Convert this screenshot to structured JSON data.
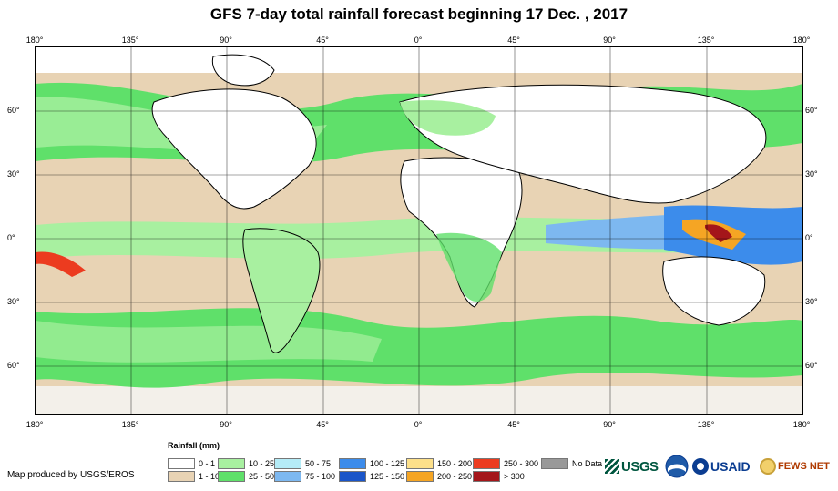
{
  "title": "GFS 7-day total rainfall forecast beginning 17 Dec. , 2017",
  "lon_ticks": [
    "180°",
    "135°",
    "90°",
    "45°",
    "0°",
    "45°",
    "90°",
    "135°",
    "180°"
  ],
  "lat_ticks": [
    "60°",
    "30°",
    "0°",
    "30°",
    "60°"
  ],
  "legend": {
    "title": "Rainfall (mm)",
    "items": [
      {
        "label": "0 - 1",
        "color": "#ffffff"
      },
      {
        "label": "1 - 10",
        "color": "#e8d3b4"
      },
      {
        "label": "10 - 25",
        "color": "#a8f0a0"
      },
      {
        "label": "25 - 50",
        "color": "#5fe06a"
      },
      {
        "label": "50 - 75",
        "color": "#b5ecf7"
      },
      {
        "label": "75 - 100",
        "color": "#7db8f0"
      },
      {
        "label": "100 - 125",
        "color": "#3c8ceb"
      },
      {
        "label": "125 - 150",
        "color": "#1a55c8"
      },
      {
        "label": "150 - 200",
        "color": "#fde08a"
      },
      {
        "label": "200 - 250",
        "color": "#f5a524"
      },
      {
        "label": "250 - 300",
        "color": "#ec3b1f"
      },
      {
        "label": "> 300",
        "color": "#a4161a"
      },
      {
        "label": "No Data",
        "color": "#999999"
      }
    ]
  },
  "credit": "Map produced by USGS/EROS",
  "logos": {
    "usgs": "USGS",
    "usaid": "USAID",
    "fews": "FEWS NET"
  }
}
